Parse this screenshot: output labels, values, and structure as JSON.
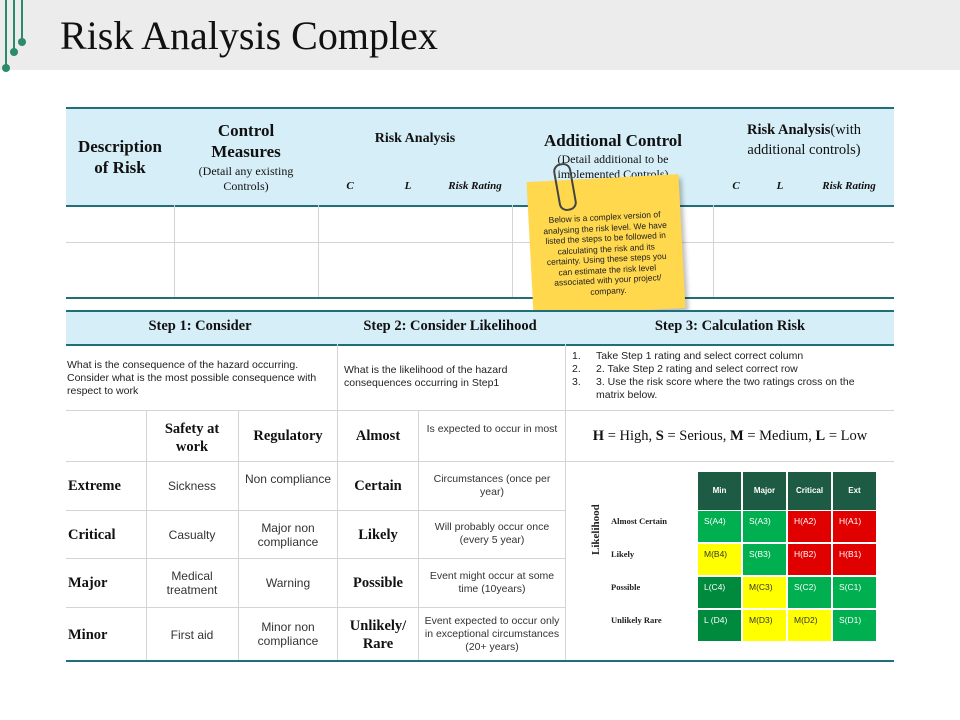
{
  "title": "Risk Analysis Complex",
  "header_row": {
    "description": "Description of Risk",
    "control_measures": "Control Measures",
    "control_measures_sub": "(Detail any existing Controls)",
    "risk_analysis": "Risk Analysis",
    "c": "C",
    "l": "L",
    "risk_rating": "Risk Rating",
    "additional_control": "Additional Control",
    "additional_control_sub": "(Detail additional to be implemented Controls)",
    "risk_analysis_with": "Risk Analysis",
    "risk_analysis_with_suffix": "(with additional controls)"
  },
  "sticky_note": "Below is a complex version of analysing the risk level. We have listed the steps to be followed in calculating the risk and its certainty. Using these steps you can estimate the risk level associated with your project/ company.",
  "steps": {
    "step1": "Step 1: Consider",
    "step2": "Step 2: Consider Likelihood",
    "step3": "Step 3: Calculation Risk",
    "step1_text": "What is the consequence of the hazard occurring. Consider what is the most possible consequence with respect to work",
    "step2_text": "What is the likelihood of the hazard consequences occurring in Step1",
    "step3_items": [
      "Take Step 1 rating and select correct column",
      "2. Take Step 2 rating and select correct row",
      "3. Use the risk score where the two ratings cross on the matrix below."
    ]
  },
  "consequence": {
    "col_safety": "Safety at work",
    "col_regulatory": "Regulatory",
    "rows": [
      {
        "label": "Extreme",
        "safety": "Sickness",
        "regulatory": "Non compliance"
      },
      {
        "label": "Critical",
        "safety": "Casualty",
        "regulatory": "Major non compliance"
      },
      {
        "label": "Major",
        "safety": "Medical treatment",
        "regulatory": "Warning"
      },
      {
        "label": "Minor",
        "safety": "First aid",
        "regulatory": "Minor non compliance"
      }
    ]
  },
  "likelihood": {
    "rows": [
      {
        "label": "Almost",
        "desc": "Is expected to occur in most"
      },
      {
        "label": "Certain",
        "desc": "Circumstances (once per year)"
      },
      {
        "label": "Likely",
        "desc": "Will probably occur once (every 5 year)"
      },
      {
        "label": "Possible",
        "desc": "Event might occur at some time (10years)"
      },
      {
        "label": "Unlikely/ Rare",
        "desc": "Event expected to occur only in exceptional circumstances (20+ years)"
      }
    ]
  },
  "legend": {
    "h": "H",
    "h_txt": " = High, ",
    "s": "S",
    "s_txt": " = Serious, ",
    "m": "M",
    "m_txt": " = Medium, ",
    "l": "L",
    "l_txt": " = Low"
  },
  "matrix": {
    "axis_label": "Likelihood",
    "columns": [
      "Min",
      "Major",
      "Critical",
      "Ext"
    ],
    "rows": [
      {
        "label": "Almost Certain",
        "cells": [
          "S(A4)",
          "S(A3)",
          "H(A2)",
          "H(A1)"
        ]
      },
      {
        "label": "Likely",
        "cells": [
          "M(B4)",
          "S(B3)",
          "H(B2)",
          "H(B1)"
        ]
      },
      {
        "label": "Possible",
        "cells": [
          "L(C4)",
          "M(C3)",
          "S(C2)",
          "S(C1)"
        ]
      },
      {
        "label": "Unlikely Rare",
        "cells": [
          "L (D4)",
          "M(D3)",
          "M(D2)",
          "S(D1)"
        ]
      }
    ],
    "colors": {
      "S": "#00b050",
      "H": "#e00000",
      "M": "#ffff00",
      "L": "#008a3e",
      "header": "#1d5b45"
    }
  }
}
